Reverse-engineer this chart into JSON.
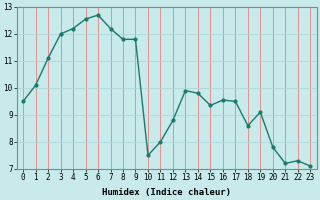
{
  "x": [
    0,
    1,
    2,
    3,
    4,
    5,
    6,
    7,
    8,
    9,
    10,
    11,
    12,
    13,
    14,
    15,
    16,
    17,
    18,
    19,
    20,
    21,
    22,
    23
  ],
  "y": [
    9.5,
    10.1,
    11.1,
    12.0,
    12.2,
    12.55,
    12.7,
    12.2,
    11.8,
    11.8,
    7.5,
    8.0,
    8.8,
    9.9,
    9.8,
    9.35,
    9.55,
    9.5,
    8.6,
    9.1,
    7.8,
    7.2,
    7.3,
    7.1
  ],
  "line_color": "#1a7a6e",
  "bg_color": "#c8eaea",
  "grid_color_v": "#e88080",
  "grid_color_h": "#b0d8d8",
  "xlabel": "Humidex (Indice chaleur)",
  "ylim": [
    7,
    13
  ],
  "xlim_min": -0.5,
  "xlim_max": 23.5,
  "yticks": [
    7,
    8,
    9,
    10,
    11,
    12,
    13
  ],
  "xticks": [
    0,
    1,
    2,
    3,
    4,
    5,
    6,
    7,
    8,
    9,
    10,
    11,
    12,
    13,
    14,
    15,
    16,
    17,
    18,
    19,
    20,
    21,
    22,
    23
  ],
  "label_fontsize": 6.5,
  "tick_fontsize": 5.5,
  "marker_size": 2.0,
  "line_width": 1.0
}
